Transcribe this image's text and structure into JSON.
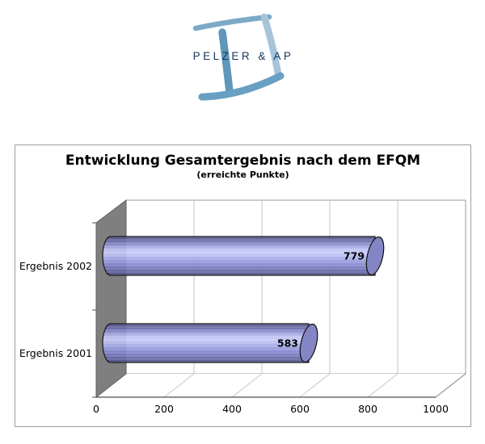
{
  "logo": {
    "company_name": "PELZER & AP",
    "colors": {
      "brush_top": "#7caac6",
      "brush_right": "#a6c4da",
      "brush_center": "#5f96ba",
      "brush_bottom": "#699fc2",
      "wordmark_text": "#16365c"
    }
  },
  "chart": {
    "title": "Entwicklung Gesamtergebnis nach dem EFQM",
    "subtitle": "(erreichte Punkte)"
  },
  "chart_data": {
    "type": "bar",
    "orientation": "horizontal",
    "style": "3d-cylinder",
    "title": "Entwicklung Gesamtergebnis nach dem EFQM",
    "subtitle": "(erreichte Punkte)",
    "categories": [
      "Ergebnis 2002",
      "Ergebnis 2001"
    ],
    "values": [
      779,
      583
    ],
    "data_labels": true,
    "xlim": [
      0,
      1000
    ],
    "x_ticks": [
      "0",
      "200",
      "400",
      "600",
      "800",
      "1000"
    ],
    "grid": true,
    "legend": false,
    "colors": {
      "bar_body": "#9fa3e4",
      "bar_cap": "#8385c4",
      "side_wall": "#7f7f7f",
      "gridline": "#c6c6c6",
      "axis_line": "#4d4d4d"
    }
  }
}
